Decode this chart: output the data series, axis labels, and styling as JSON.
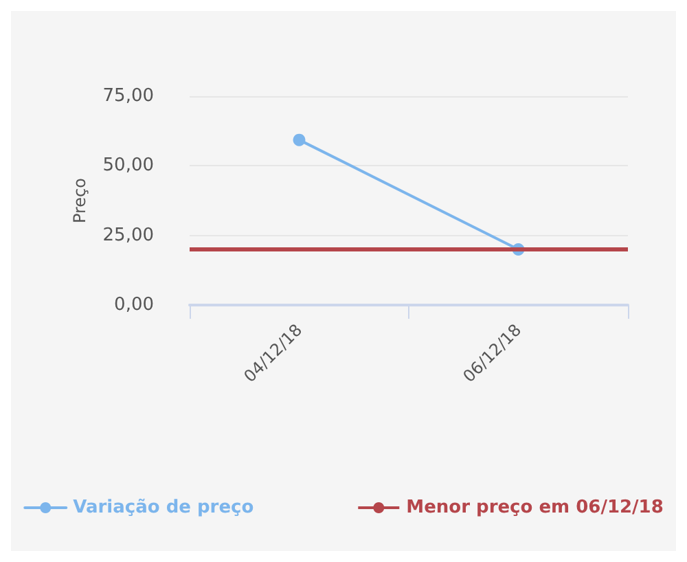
{
  "chart_data": {
    "type": "line",
    "ylabel": "Preço",
    "categories": [
      "04/12/18",
      "06/12/18"
    ],
    "series": [
      {
        "name": "Variação de preço",
        "color": "#7cb5ec",
        "values": [
          59.3,
          20
        ]
      }
    ],
    "ref_lines": [
      {
        "axis": "y",
        "value": 20,
        "label": "Menor preço em 06/12/18",
        "color": "#b5464b"
      }
    ],
    "ylim": [
      0,
      75
    ],
    "yticks": [
      {
        "value": 0,
        "label": "0,00"
      },
      {
        "value": 25,
        "label": "25,00"
      },
      {
        "value": 50,
        "label": "50,00"
      },
      {
        "value": 75,
        "label": "75,00"
      }
    ],
    "grid": "y",
    "legend": "bottom",
    "marker": "circle",
    "line_style": "solid"
  }
}
